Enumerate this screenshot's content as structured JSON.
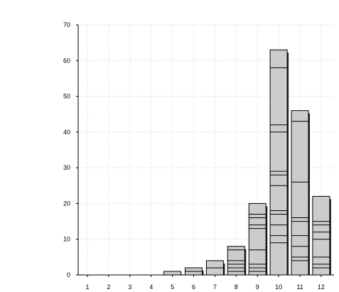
{
  "chart_data": {
    "type": "bar",
    "title": "",
    "xlabel": "",
    "ylabel": "",
    "ylim": [
      0,
      70
    ],
    "yticks": [
      0,
      10,
      20,
      30,
      40,
      50,
      60,
      70
    ],
    "xticks": [
      "1",
      "2",
      "3",
      "4",
      "5",
      "6",
      "7",
      "8",
      "9",
      "10",
      "11",
      "12"
    ],
    "grid": true,
    "bars": [
      {
        "x": 5,
        "value": 1,
        "segments": [
          1
        ]
      },
      {
        "x": 6,
        "value": 2,
        "segments": [
          1,
          2
        ]
      },
      {
        "x": 7,
        "value": 4,
        "segments": [
          2,
          4
        ]
      },
      {
        "x": 8,
        "value": 8,
        "segments": [
          1,
          2,
          3,
          4,
          7,
          8
        ]
      },
      {
        "x": 9,
        "value": 20,
        "segments": [
          1,
          2,
          3,
          7,
          13,
          14,
          16,
          17,
          20
        ]
      },
      {
        "x": 10,
        "value": 63,
        "segments": [
          9,
          11,
          14,
          17,
          18,
          25,
          28,
          29,
          40,
          42,
          58,
          63
        ]
      },
      {
        "x": 11,
        "value": 46,
        "segments": [
          4,
          5,
          8,
          11,
          15,
          16,
          26,
          43,
          46
        ]
      },
      {
        "x": 12,
        "value": 22,
        "segments": [
          2,
          3,
          5,
          10,
          12,
          14,
          15,
          22
        ]
      }
    ]
  }
}
